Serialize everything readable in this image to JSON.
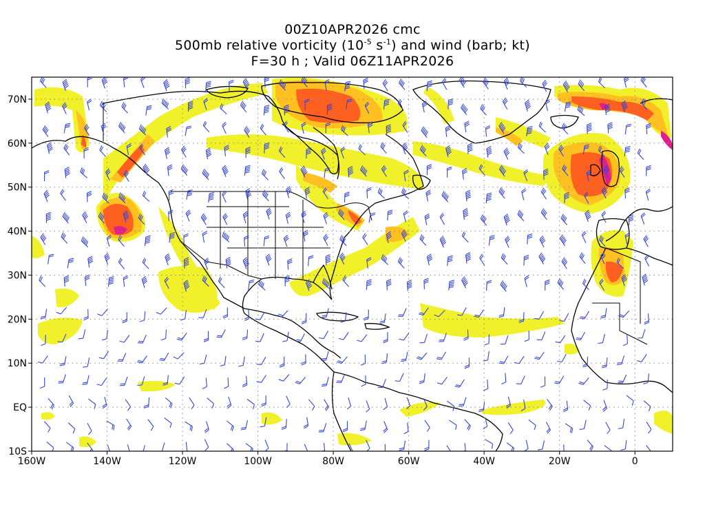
{
  "title": {
    "line1": "00Z10APR2026 cmc",
    "line2_pre": "500mb relative vorticity (10",
    "line2_exp1": "-5",
    "line2_mid": " s",
    "line2_exp2": "-1",
    "line2_post": ") and wind (barb; kt)",
    "line3": "F=30 h ; Valid 06Z11APR2026"
  },
  "map": {
    "lon_range": [
      -160,
      10
    ],
    "lat_range": [
      -10,
      75
    ],
    "x_ticks": [
      {
        "lon": -160,
        "label": "160W"
      },
      {
        "lon": -140,
        "label": "140W"
      },
      {
        "lon": -120,
        "label": "120W"
      },
      {
        "lon": -100,
        "label": "100W"
      },
      {
        "lon": -80,
        "label": "80W"
      },
      {
        "lon": -60,
        "label": "60W"
      },
      {
        "lon": -40,
        "label": "40W"
      },
      {
        "lon": -20,
        "label": "20W"
      },
      {
        "lon": 0,
        "label": "0"
      }
    ],
    "y_ticks": [
      {
        "lat": -10,
        "label": "10S"
      },
      {
        "lat": 0,
        "label": "EQ"
      },
      {
        "lat": 10,
        "label": "10N"
      },
      {
        "lat": 20,
        "label": "20N"
      },
      {
        "lat": 30,
        "label": "30N"
      },
      {
        "lat": 40,
        "label": "40N"
      },
      {
        "lat": 50,
        "label": "50N"
      },
      {
        "lat": 60,
        "label": "60N"
      },
      {
        "lat": 70,
        "label": "70N"
      }
    ],
    "grid": "dotted",
    "colors": {
      "barb": "#3344dd",
      "coast": "#000000",
      "vort_low": "#f0f020",
      "vort_mid": "#ffc020",
      "vort_high": "#ff6020",
      "vort_max": "#e0208a"
    }
  }
}
